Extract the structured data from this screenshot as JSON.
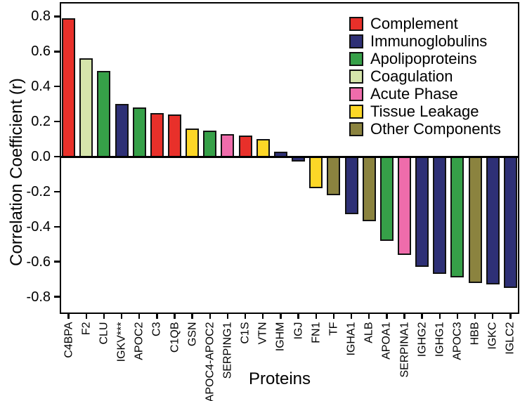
{
  "figure": {
    "background_color": "#ffffff",
    "axis_color": "#000000"
  },
  "chart_data": {
    "type": "bar",
    "title": "",
    "xlabel": "Proteins",
    "ylabel": "Correlation Coefficient (r)",
    "ylim": [
      -0.9,
      0.88
    ],
    "grid": false,
    "legend_position": "top-right-inside",
    "ytick_labels": [
      "0.8",
      "0.6",
      "0.4",
      "0.2",
      "0.0",
      "-0.2",
      "-0.4",
      "-0.6",
      "-0.8"
    ],
    "ytick_values": [
      0.8,
      0.6,
      0.4,
      0.2,
      0.0,
      -0.2,
      -0.4,
      -0.6,
      -0.8
    ],
    "groups": [
      {
        "name": "Complement",
        "color": "#e8302a"
      },
      {
        "name": "Immunoglobulins",
        "color": "#2e3076"
      },
      {
        "name": "Apolipoproteins",
        "color": "#36a048"
      },
      {
        "name": "Coagulation",
        "color": "#d6e5ab"
      },
      {
        "name": "Acute Phase",
        "color": "#ef6cab"
      },
      {
        "name": "Tissue Leakage",
        "color": "#fcd727"
      },
      {
        "name": "Other Components",
        "color": "#8b833f"
      }
    ],
    "bars": [
      {
        "protein": "C4BPA",
        "r": 0.79,
        "group": "Complement"
      },
      {
        "protein": "F2",
        "r": 0.56,
        "group": "Coagulation"
      },
      {
        "protein": "CLU",
        "r": 0.49,
        "group": "Apolipoproteins"
      },
      {
        "protein": "IGKV***",
        "r": 0.3,
        "group": "Immunoglobulins"
      },
      {
        "protein": "APOC2",
        "r": 0.28,
        "group": "Apolipoproteins"
      },
      {
        "protein": "C3",
        "r": 0.25,
        "group": "Complement"
      },
      {
        "protein": "C1QB",
        "r": 0.24,
        "group": "Complement"
      },
      {
        "protein": "GSN",
        "r": 0.16,
        "group": "Tissue Leakage"
      },
      {
        "protein": "APOC4-APOC2",
        "r": 0.15,
        "group": "Apolipoproteins"
      },
      {
        "protein": "SERPING1",
        "r": 0.13,
        "group": "Acute Phase"
      },
      {
        "protein": "C1S",
        "r": 0.12,
        "group": "Complement"
      },
      {
        "protein": "VTN",
        "r": 0.1,
        "group": "Tissue Leakage"
      },
      {
        "protein": "IGHM",
        "r": 0.03,
        "group": "Immunoglobulins"
      },
      {
        "protein": "IGJ",
        "r": -0.03,
        "group": "Immunoglobulins"
      },
      {
        "protein": "FN1",
        "r": -0.18,
        "group": "Tissue Leakage"
      },
      {
        "protein": "TF",
        "r": -0.22,
        "group": "Other Components"
      },
      {
        "protein": "IGHA1",
        "r": -0.33,
        "group": "Immunoglobulins"
      },
      {
        "protein": "ALB",
        "r": -0.37,
        "group": "Other Components"
      },
      {
        "protein": "APOA1",
        "r": -0.48,
        "group": "Apolipoproteins"
      },
      {
        "protein": "SERPINA1",
        "r": -0.56,
        "group": "Acute Phase"
      },
      {
        "protein": "IGHG2",
        "r": -0.63,
        "group": "Immunoglobulins"
      },
      {
        "protein": "IGHG1",
        "r": -0.67,
        "group": "Immunoglobulins"
      },
      {
        "protein": "APOC3",
        "r": -0.69,
        "group": "Apolipoproteins"
      },
      {
        "protein": "HBB",
        "r": -0.72,
        "group": "Other Components"
      },
      {
        "protein": "IGKC",
        "r": -0.73,
        "group": "Immunoglobulins"
      },
      {
        "protein": "IGLC2",
        "r": -0.75,
        "group": "Immunoglobulins"
      }
    ]
  }
}
